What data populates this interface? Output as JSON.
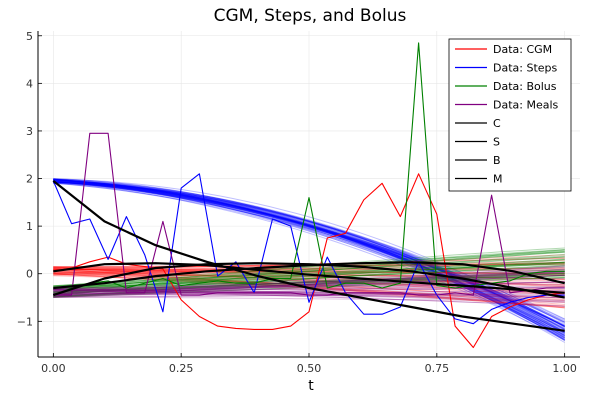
{
  "chart_data": {
    "type": "line",
    "title": "CGM, Steps, and Bolus",
    "xlabel": "t",
    "ylabel": "",
    "xlim": [
      -0.03,
      1.03
    ],
    "ylim": [
      -1.75,
      5.1
    ],
    "xticks": [
      0,
      0.25,
      0.5,
      0.75,
      1
    ],
    "xtick_labels": [
      "0.00",
      "0.25",
      "0.50",
      "0.75",
      "1.00"
    ],
    "yticks": [
      -1,
      0,
      1,
      2,
      3,
      4,
      5
    ],
    "ytick_labels": [
      "−1",
      "0",
      "1",
      "2",
      "3",
      "4",
      "5"
    ],
    "grid": true,
    "legend_position": "top-right",
    "series": [
      {
        "name": "Data: CGM",
        "kind": "data",
        "color": "#ff0000",
        "x": [
          0,
          0.0357,
          0.0714,
          0.1071,
          0.1429,
          0.1786,
          0.2143,
          0.25,
          0.2857,
          0.3214,
          0.3571,
          0.3929,
          0.4286,
          0.4643,
          0.5,
          0.5357,
          0.5714,
          0.6071,
          0.6429,
          0.6786,
          0.7143,
          0.75,
          0.7857,
          0.8214,
          0.8571,
          0.8929,
          0.9286,
          0.9643,
          1.0
        ],
        "y": [
          0.05,
          0.12,
          0.25,
          0.35,
          0.2,
          0.15,
          0.1,
          -0.55,
          -0.9,
          -1.1,
          -1.15,
          -1.17,
          -1.17,
          -1.1,
          -0.8,
          0.75,
          0.85,
          1.55,
          1.9,
          1.2,
          2.1,
          1.25,
          -1.1,
          -1.55,
          -0.9,
          -0.7,
          -0.55,
          -0.45,
          -0.4
        ]
      },
      {
        "name": "Data: Steps",
        "kind": "data",
        "color": "#0000ff",
        "x": [
          0,
          0.0357,
          0.0714,
          0.1071,
          0.1429,
          0.1786,
          0.2143,
          0.25,
          0.2857,
          0.3214,
          0.3571,
          0.3929,
          0.4286,
          0.4643,
          0.5,
          0.5357,
          0.5714,
          0.6071,
          0.6429,
          0.6786,
          0.7143,
          0.75,
          0.7857,
          0.8214,
          0.8571,
          0.8929,
          0.9286,
          0.9643,
          1.0
        ],
        "y": [
          1.95,
          1.05,
          1.15,
          0.3,
          1.2,
          0.4,
          -0.8,
          1.8,
          2.1,
          -0.05,
          0.25,
          -0.4,
          1.15,
          1.0,
          -0.6,
          0.35,
          -0.4,
          -0.85,
          -0.85,
          -0.7,
          0.25,
          -0.45,
          -0.95,
          -1.05,
          -0.75,
          -0.6,
          -0.5,
          -0.45,
          -0.45
        ]
      },
      {
        "name": "Data: Bolus",
        "kind": "data",
        "color": "#008000",
        "x": [
          0,
          0.0357,
          0.0714,
          0.1071,
          0.1429,
          0.1786,
          0.2143,
          0.25,
          0.2857,
          0.3214,
          0.3571,
          0.3929,
          0.4286,
          0.4643,
          0.5,
          0.5357,
          0.5714,
          0.6071,
          0.6429,
          0.6786,
          0.7143,
          0.75,
          0.7857,
          0.8214,
          0.8571,
          0.8929,
          0.9286,
          0.9643,
          1.0
        ],
        "y": [
          -0.45,
          -0.3,
          -0.2,
          -0.15,
          -0.3,
          -0.2,
          -0.1,
          -0.25,
          -0.2,
          -0.15,
          -0.2,
          -0.2,
          -0.1,
          -0.1,
          1.6,
          -0.3,
          -0.2,
          -0.2,
          -0.3,
          -0.2,
          4.85,
          -0.25,
          -0.3,
          -0.25,
          -0.2,
          -0.15,
          0.0,
          0.05,
          0.05
        ]
      },
      {
        "name": "Data: Meals",
        "kind": "data",
        "color": "#800080",
        "x": [
          0,
          0.0357,
          0.0714,
          0.1071,
          0.1429,
          0.1786,
          0.2143,
          0.25,
          0.2857,
          0.3214,
          0.3571,
          0.3929,
          0.4286,
          0.4643,
          0.5,
          0.5357,
          0.5714,
          0.6071,
          0.6429,
          0.6786,
          0.7143,
          0.75,
          0.7857,
          0.8214,
          0.8571,
          0.8929,
          0.9286,
          0.9643,
          1.0
        ],
        "y": [
          -0.45,
          -0.45,
          2.95,
          2.95,
          -0.4,
          -0.4,
          1.1,
          -0.45,
          -0.45,
          -0.4,
          -0.4,
          -0.4,
          -0.4,
          -0.4,
          -0.45,
          -0.45,
          -0.4,
          -0.4,
          -0.4,
          -0.4,
          -0.45,
          -0.45,
          -0.4,
          -0.45,
          1.65,
          -0.4,
          -0.35,
          -0.3,
          -0.3
        ]
      },
      {
        "name": "C",
        "kind": "fit",
        "color": "#000000",
        "x": [
          0,
          0.1,
          0.2,
          0.3,
          0.4,
          0.5,
          0.6,
          0.7,
          0.8,
          0.9,
          1.0
        ],
        "y": [
          0.05,
          0.2,
          0.22,
          0.18,
          0.08,
          -0.02,
          -0.1,
          -0.18,
          -0.25,
          -0.33,
          -0.4
        ]
      },
      {
        "name": "S",
        "kind": "fit",
        "color": "#000000",
        "x": [
          0,
          0.1,
          0.2,
          0.3,
          0.4,
          0.5,
          0.6,
          0.7,
          0.8,
          0.9,
          1.0
        ],
        "y": [
          1.95,
          1.1,
          0.6,
          0.25,
          -0.05,
          -0.3,
          -0.5,
          -0.7,
          -0.9,
          -1.05,
          -1.2
        ]
      },
      {
        "name": "B",
        "kind": "fit",
        "color": "#000000",
        "x": [
          0,
          0.1,
          0.2,
          0.3,
          0.4,
          0.5,
          0.6,
          0.7,
          0.8,
          0.9,
          1.0
        ],
        "y": [
          -0.3,
          -0.2,
          -0.05,
          0.05,
          0.12,
          0.18,
          0.22,
          0.24,
          0.2,
          0.05,
          -0.2
        ]
      },
      {
        "name": "M",
        "kind": "fit",
        "color": "#000000",
        "x": [
          0,
          0.1,
          0.2,
          0.3,
          0.4,
          0.5,
          0.6,
          0.7,
          0.8,
          0.9,
          1.0
        ],
        "y": [
          -0.45,
          -0.1,
          0.12,
          0.2,
          0.22,
          0.2,
          0.15,
          0.05,
          -0.1,
          -0.3,
          -0.5
        ]
      }
    ],
    "ensembles": [
      {
        "color": "#0000ff",
        "count": 60,
        "y0": [
          1.9,
          2.0
        ],
        "y_end": [
          -1.45,
          -0.95
        ],
        "curvature": [
          0.55,
          0.8
        ],
        "opacity": 0.25
      },
      {
        "color": "#ff0000",
        "count": 45,
        "y0": [
          -0.05,
          0.15
        ],
        "y_end": [
          -0.75,
          0.45
        ],
        "curvature": [
          0.0,
          0.2
        ],
        "opacity": 0.25
      },
      {
        "color": "#008000",
        "count": 40,
        "y0": [
          -0.5,
          -0.25
        ],
        "y_end": [
          -0.1,
          0.6
        ],
        "curvature": [
          -0.3,
          0.1
        ],
        "opacity": 0.3
      },
      {
        "color": "#800080",
        "count": 40,
        "y0": [
          -0.5,
          -0.3
        ],
        "y_end": [
          -0.7,
          0.2
        ],
        "curvature": [
          0.1,
          0.4
        ],
        "opacity": 0.25
      }
    ]
  }
}
